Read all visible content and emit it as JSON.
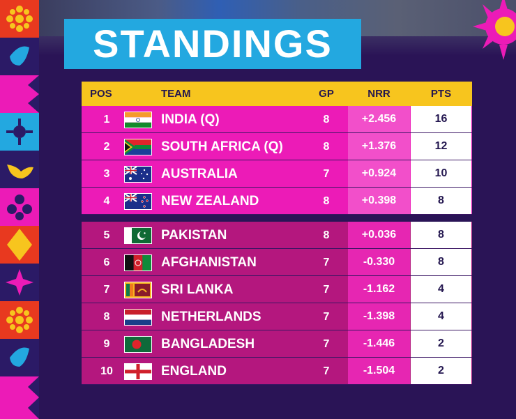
{
  "title": "STANDINGS",
  "columns": {
    "pos": "POS",
    "team": "TEAM",
    "gp": "GP",
    "nrr": "NRR",
    "pts": "PTS"
  },
  "rows": [
    {
      "pos": "1",
      "team": "INDIA (Q)",
      "gp": "8",
      "nrr": "+2.456",
      "pts": "16",
      "flag": "india-flag-icon"
    },
    {
      "pos": "2",
      "team": "SOUTH AFRICA (Q)",
      "gp": "8",
      "nrr": "+1.376",
      "pts": "12",
      "flag": "south-africa-flag-icon"
    },
    {
      "pos": "3",
      "team": "AUSTRALIA",
      "gp": "7",
      "nrr": "+0.924",
      "pts": "10",
      "flag": "australia-flag-icon"
    },
    {
      "pos": "4",
      "team": "NEW ZEALAND",
      "gp": "8",
      "nrr": "+0.398",
      "pts": "8",
      "flag": "new-zealand-flag-icon"
    },
    {
      "pos": "5",
      "team": "PAKISTAN",
      "gp": "8",
      "nrr": "+0.036",
      "pts": "8",
      "flag": "pakistan-flag-icon"
    },
    {
      "pos": "6",
      "team": "AFGHANISTAN",
      "gp": "7",
      "nrr": "-0.330",
      "pts": "8",
      "flag": "afghanistan-flag-icon"
    },
    {
      "pos": "7",
      "team": "SRI LANKA",
      "gp": "7",
      "nrr": "-1.162",
      "pts": "4",
      "flag": "sri-lanka-flag-icon"
    },
    {
      "pos": "8",
      "team": "NETHERLANDS",
      "gp": "7",
      "nrr": "-1.398",
      "pts": "4",
      "flag": "netherlands-flag-icon"
    },
    {
      "pos": "9",
      "team": "BANGLADESH",
      "gp": "7",
      "nrr": "-1.446",
      "pts": "2",
      "flag": "bangladesh-flag-icon"
    },
    {
      "pos": "10",
      "team": "ENGLAND",
      "gp": "7",
      "nrr": "-1.504",
      "pts": "2",
      "flag": "england-flag-icon"
    }
  ],
  "colors": {
    "title_bg": "#23a8e0",
    "header_bg": "#f7c51e",
    "top4_row": "#ec1bb7",
    "other_row": "#b4177e",
    "background": "#2a1456"
  }
}
